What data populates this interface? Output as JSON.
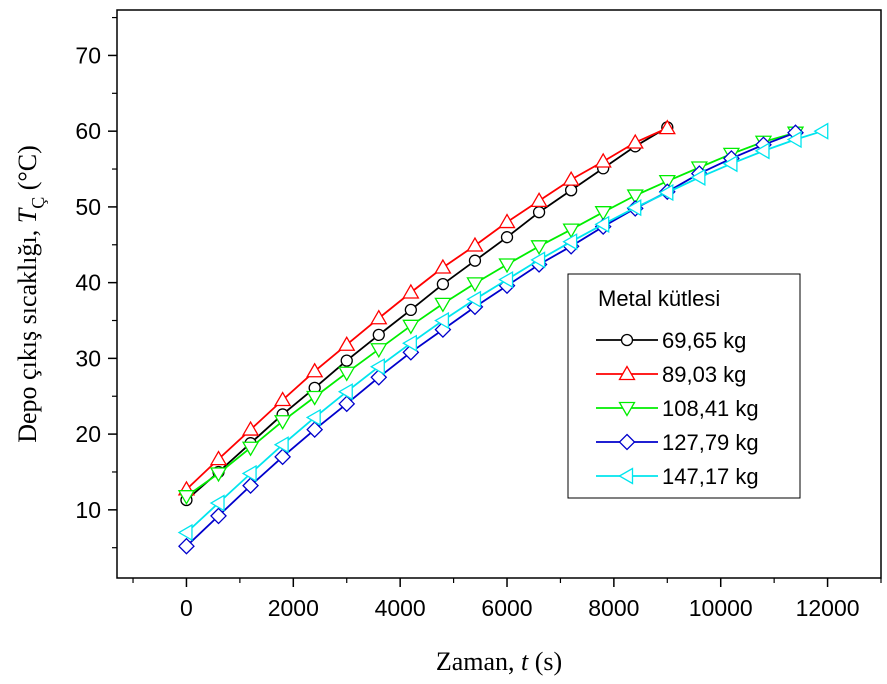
{
  "chart_data": {
    "type": "line",
    "title": "",
    "xlabel": {
      "prefix": "Zaman, ",
      "var": "t",
      "unit": " (s)"
    },
    "ylabel": {
      "prefix": "Depo çıkış sıcaklığı, ",
      "var": "T",
      "sub": "Ç",
      "unit": " (°C)"
    },
    "xlim": [
      -1300,
      13000
    ],
    "ylim": [
      1,
      76
    ],
    "xticks": [
      0,
      2000,
      4000,
      6000,
      8000,
      10000,
      12000
    ],
    "yticks": [
      10,
      20,
      30,
      40,
      50,
      60,
      70
    ],
    "grid": false,
    "legend": {
      "title": "Metal kütlesi",
      "position": "right"
    },
    "series": [
      {
        "name": "69,65 kg",
        "color": "#000000",
        "marker": "circle",
        "x": [
          0,
          600,
          1200,
          1800,
          2400,
          3000,
          3600,
          4200,
          4800,
          5400,
          6000,
          6600,
          7200,
          7800,
          8400,
          9000
        ],
        "y": [
          11.3,
          15.0,
          18.8,
          22.6,
          26.1,
          29.7,
          33.1,
          36.4,
          39.8,
          42.9,
          46.0,
          49.3,
          52.2,
          55.1,
          58.0,
          60.5
        ]
      },
      {
        "name": "89,03 kg",
        "color": "#ff0000",
        "marker": "triangle-up",
        "x": [
          0,
          600,
          1200,
          1800,
          2400,
          3000,
          3600,
          4200,
          4800,
          5400,
          6000,
          6600,
          7200,
          7800,
          8400,
          9000
        ],
        "y": [
          12.7,
          16.7,
          20.6,
          24.5,
          28.3,
          31.8,
          35.3,
          38.7,
          42.0,
          44.9,
          48.0,
          50.8,
          53.6,
          56.0,
          58.5,
          60.4
        ]
      },
      {
        "name": "108,41 kg",
        "color": "#00ee00",
        "marker": "triangle-down",
        "x": [
          0,
          600,
          1200,
          1800,
          2400,
          3000,
          3600,
          4200,
          4800,
          5400,
          6000,
          6600,
          7200,
          7800,
          8400,
          9000,
          9600,
          10200,
          10800,
          11400
        ],
        "y": [
          11.8,
          14.8,
          18.2,
          21.7,
          24.9,
          28.1,
          31.2,
          34.3,
          37.2,
          39.9,
          42.4,
          44.8,
          47.0,
          49.3,
          51.5,
          53.4,
          55.2,
          57.0,
          58.6,
          59.8
        ]
      },
      {
        "name": "127,79 kg",
        "color": "#0000cc",
        "marker": "diamond",
        "x": [
          0,
          600,
          1200,
          1800,
          2400,
          3000,
          3600,
          4200,
          4800,
          5400,
          6000,
          6600,
          7200,
          7800,
          8400,
          9000,
          9600,
          10200,
          10800,
          11400
        ],
        "y": [
          5.2,
          9.2,
          13.2,
          17.0,
          20.6,
          24.0,
          27.5,
          30.8,
          33.8,
          36.8,
          39.6,
          42.4,
          44.8,
          47.4,
          49.8,
          52.0,
          54.4,
          56.4,
          58.2,
          59.8
        ]
      },
      {
        "name": "147,17 kg",
        "color": "#00e5ee",
        "marker": "triangle-left",
        "x": [
          0,
          600,
          1200,
          1800,
          2400,
          3000,
          3600,
          4200,
          4800,
          5400,
          6000,
          6600,
          7200,
          7800,
          8400,
          9000,
          9600,
          10200,
          10800,
          11400,
          11900
        ],
        "y": [
          7.0,
          10.9,
          14.8,
          18.6,
          22.2,
          25.6,
          28.9,
          32.0,
          35.0,
          37.8,
          40.4,
          43.0,
          45.4,
          47.7,
          49.9,
          51.9,
          53.9,
          55.7,
          57.4,
          58.9,
          60.0
        ]
      }
    ]
  }
}
